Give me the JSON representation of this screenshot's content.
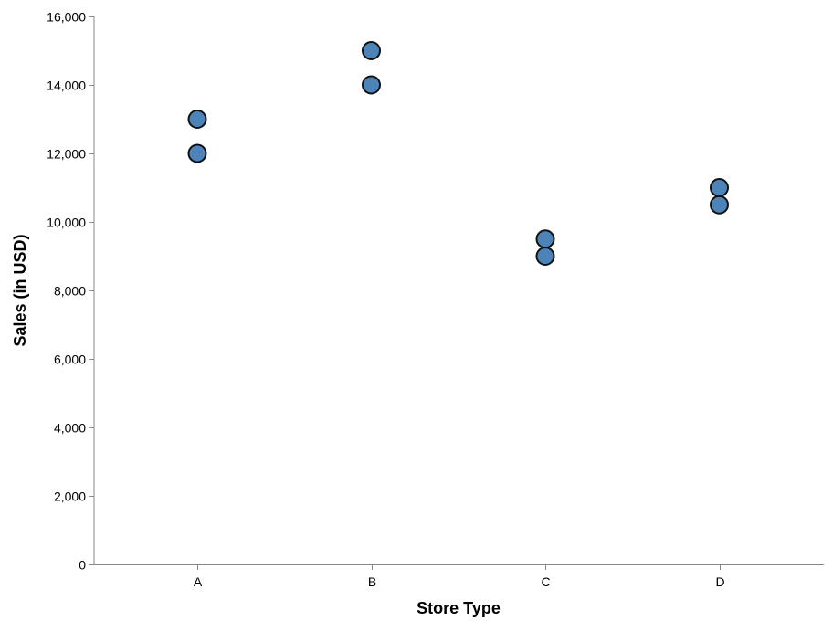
{
  "chart_data": {
    "type": "scatter",
    "title": "",
    "xlabel": "Store Type",
    "ylabel": "Sales (in USD)",
    "categories": [
      "A",
      "B",
      "C",
      "D"
    ],
    "ylim": [
      0,
      16000
    ],
    "y_ticks": [
      0,
      2000,
      4000,
      6000,
      8000,
      10000,
      12000,
      14000,
      16000
    ],
    "y_tick_labels": [
      "0",
      "2,000",
      "4,000",
      "6,000",
      "8,000",
      "10,000",
      "12,000",
      "14,000",
      "16,000"
    ],
    "grid": false,
    "legend": "none",
    "marker_color": "#4c84b9",
    "marker_edge_color": "#111111",
    "axis_color": "#888888",
    "points": [
      {
        "x": "A",
        "y": 12000
      },
      {
        "x": "A",
        "y": 13000
      },
      {
        "x": "B",
        "y": 14000
      },
      {
        "x": "B",
        "y": 15000
      },
      {
        "x": "C",
        "y": 9000
      },
      {
        "x": "C",
        "y": 9500
      },
      {
        "x": "D",
        "y": 10500
      },
      {
        "x": "D",
        "y": 11000
      }
    ]
  }
}
